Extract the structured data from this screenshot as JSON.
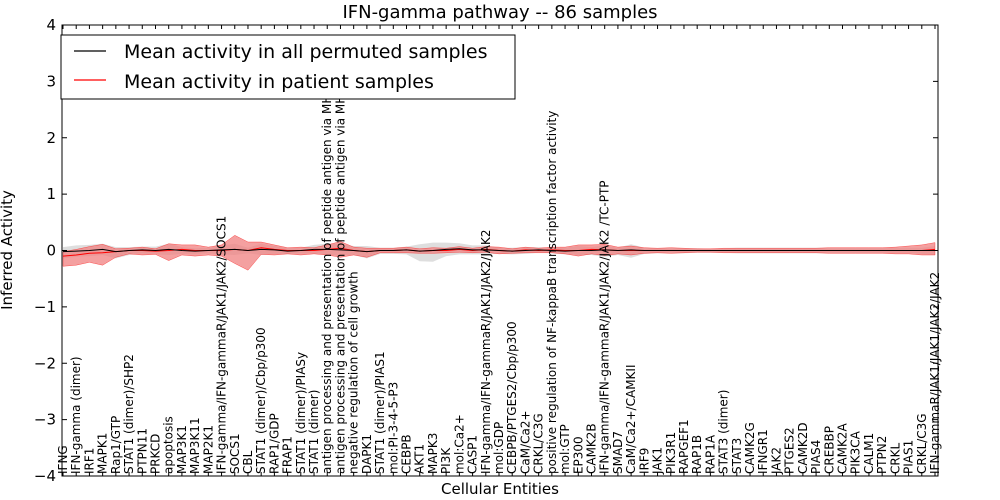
{
  "chart_data": {
    "type": "line",
    "title": "IFN-gamma pathway -- 86 samples",
    "xlabel": "Cellular Entities",
    "ylabel": "Inferred Activity",
    "ylim": [
      -4,
      4
    ],
    "yticks": [
      4,
      3,
      2,
      1,
      0,
      -1,
      -2,
      -3,
      -4
    ],
    "ytick_labels": [
      "4",
      "3",
      "2",
      "1",
      "0",
      "−1",
      "−2",
      "−3",
      "−4"
    ],
    "legend_position": "top-left",
    "colors": {
      "permuted": "#000000",
      "patient": "#ff0000",
      "patient_band": "#f08080",
      "permuted_band": "#c8c8c8"
    },
    "categories": [
      "IFNG",
      "IFN-gamma (dimer)",
      "IRF1",
      "MAPK1",
      "Rap1/GTP",
      "STAT1 (dimer)/SHP2",
      "PTPN11",
      "PRKCD",
      "apoptosis",
      "MAP3K1",
      "MAP3K11",
      "MAP2K1",
      "IFN-gamma/IFN-gammaR/JAK1/JAK2/SOCS1",
      "SOCS1",
      "CBL",
      "STAT1 (dimer)/Cbp/p300",
      "RAP1/GDP",
      "FRAP1",
      "STAT1 (dimer)/PIASy",
      "STAT1 (dimer)",
      "antigen processing and presentation of peptide antigen via MHC class I",
      "antigen processing and presentation of peptide antigen via MHC class II",
      "negative regulation of cell growth",
      "DAPK1",
      "STAT1 (dimer)/PIAS1",
      "mol:PI-3-4-5-P3",
      "CEBPB",
      "AKT1",
      "MAPK3",
      "PI3K",
      "mol:Ca2+",
      "CASP1",
      "IFN-gamma/IFN-gammaR/JAK1/JAK2/JAK2",
      "mol:GDP",
      "CEBPB/PTGES2/Cbp/p300",
      "CaM/Ca2+",
      "CRKL/C3G",
      "positive regulation of NF-kappaB transcription factor activity",
      "mol:GTP",
      "EP300",
      "CAMK2B",
      "IFN-gamma/IFN-gammaR/JAK1/JAK2/JAK2 /TC-PTP",
      "SMAD7",
      "CaM/Ca2+/CAMKII",
      "IRF9",
      "JAK1",
      "PIK3R1",
      "RAPGEF1",
      "RAP1B",
      "RAP1A",
      "STAT3 (dimer)",
      "STAT3",
      "CAMK2G",
      "IFNGR1",
      "JAK2",
      "PTGES2",
      "CAMK2D",
      "PIAS4",
      "CREBBP",
      "CAMK2A",
      "PIK3CA",
      "CALM1",
      "PTPN2",
      "CRKL",
      "PIAS1",
      "CRKL/C3G",
      "IFN-gammaR/JAK1/JAK1/JAK2/JAK2"
    ],
    "series": [
      {
        "name": "Mean activity in all permuted samples",
        "values": [
          -0.02,
          -0.01,
          0.0,
          0.02,
          -0.02,
          0.0,
          0.01,
          0.0,
          0.02,
          0.0,
          -0.01,
          0.0,
          0.01,
          0.02,
          0.0,
          0.02,
          0.01,
          -0.01,
          0.0,
          0.02,
          0.02,
          0.01,
          0.0,
          -0.02,
          0.0,
          0.0,
          0.01,
          -0.01,
          0.0,
          0.02,
          0.03,
          0.01,
          0.01,
          0.0,
          -0.01,
          0.0,
          0.01,
          0.0,
          -0.01,
          0.0,
          0.0,
          0.01,
          0.0,
          0.01,
          0.0,
          0.0,
          0.0,
          0.0,
          0.0,
          0.0,
          0.0,
          0.0,
          0.0,
          0.0,
          0.0,
          0.0,
          0.0,
          0.0,
          0.0,
          0.0,
          0.0,
          0.0,
          0.0,
          0.0,
          0.0,
          0.0,
          0.0
        ],
        "band_upper": [
          0.08,
          0.1,
          0.1,
          0.1,
          0.08,
          0.06,
          0.06,
          0.07,
          0.1,
          0.06,
          0.05,
          0.05,
          0.08,
          0.1,
          0.05,
          0.1,
          0.07,
          0.06,
          0.05,
          0.08,
          0.1,
          0.1,
          0.08,
          0.1,
          0.05,
          0.05,
          0.06,
          0.12,
          0.14,
          0.12,
          0.1,
          0.08,
          0.08,
          0.05,
          0.06,
          0.06,
          0.05,
          0.05,
          0.06,
          0.08,
          0.06,
          0.08,
          0.05,
          0.1,
          0.05,
          0.04,
          0.05,
          0.04,
          0.04,
          0.03,
          0.04,
          0.05,
          0.05,
          0.05,
          0.05,
          0.05,
          0.05,
          0.05,
          0.05,
          0.05,
          0.05,
          0.05,
          0.05,
          0.05,
          0.05,
          0.05,
          0.08
        ],
        "band_lower": [
          -0.12,
          -0.1,
          -0.1,
          -0.1,
          -0.12,
          -0.08,
          -0.06,
          -0.07,
          -0.1,
          -0.06,
          -0.05,
          -0.05,
          -0.08,
          -0.1,
          -0.05,
          -0.1,
          -0.07,
          -0.06,
          -0.05,
          -0.08,
          -0.1,
          -0.1,
          -0.08,
          -0.12,
          -0.06,
          -0.06,
          -0.08,
          -0.18,
          -0.2,
          -0.12,
          -0.1,
          -0.08,
          -0.08,
          -0.06,
          -0.06,
          -0.06,
          -0.05,
          -0.05,
          -0.06,
          -0.08,
          -0.08,
          -0.12,
          -0.08,
          -0.14,
          -0.06,
          -0.05,
          -0.05,
          -0.05,
          -0.04,
          -0.04,
          -0.04,
          -0.05,
          -0.05,
          -0.05,
          -0.05,
          -0.05,
          -0.05,
          -0.05,
          -0.05,
          -0.05,
          -0.05,
          -0.05,
          -0.05,
          -0.05,
          -0.05,
          -0.06,
          -0.08
        ]
      },
      {
        "name": "Mean activity in patient samples",
        "values": [
          -0.1,
          -0.08,
          -0.05,
          -0.04,
          -0.02,
          0.0,
          0.0,
          -0.01,
          0.0,
          0.02,
          0.0,
          0.0,
          0.0,
          0.02,
          0.0,
          0.05,
          0.02,
          0.0,
          0.0,
          0.0,
          0.02,
          0.04,
          0.0,
          -0.02,
          0.0,
          0.0,
          0.01,
          -0.01,
          0.0,
          0.0,
          0.02,
          0.0,
          0.02,
          0.0,
          -0.01,
          0.01,
          0.0,
          0.01,
          0.0,
          0.0,
          0.02,
          0.01,
          0.0,
          0.0,
          0.0,
          0.0,
          0.0,
          0.0,
          0.0,
          0.0,
          0.0,
          0.0,
          0.0,
          0.0,
          0.0,
          0.0,
          0.0,
          0.0,
          0.0,
          0.0,
          0.0,
          0.0,
          0.0,
          0.0,
          0.0,
          0.0,
          0.02
        ],
        "band_upper": [
          0.08,
          0.1,
          0.12,
          0.15,
          0.05,
          0.04,
          0.06,
          0.04,
          0.12,
          0.08,
          0.1,
          0.06,
          0.1,
          0.25,
          0.15,
          0.1,
          0.08,
          0.05,
          0.06,
          0.05,
          0.08,
          0.12,
          0.06,
          0.06,
          0.04,
          0.04,
          0.05,
          0.04,
          0.05,
          0.04,
          0.05,
          0.04,
          0.05,
          0.06,
          0.04,
          0.05,
          0.04,
          0.05,
          0.06,
          0.1,
          0.08,
          0.1,
          0.06,
          0.08,
          0.05,
          0.04,
          0.05,
          0.04,
          0.03,
          0.03,
          0.04,
          0.04,
          0.04,
          0.04,
          0.04,
          0.04,
          0.04,
          0.04,
          0.05,
          0.05,
          0.05,
          0.05,
          0.05,
          0.06,
          0.08,
          0.1,
          0.12
        ],
        "band_lower": [
          -0.18,
          -0.18,
          -0.16,
          -0.22,
          -0.1,
          -0.06,
          -0.08,
          -0.06,
          -0.18,
          -0.1,
          -0.1,
          -0.08,
          -0.1,
          -0.25,
          -0.35,
          -0.12,
          -0.1,
          -0.06,
          -0.08,
          -0.06,
          -0.1,
          -0.16,
          -0.08,
          -0.1,
          -0.04,
          -0.04,
          -0.05,
          -0.04,
          -0.05,
          -0.04,
          -0.05,
          -0.04,
          -0.05,
          -0.06,
          -0.04,
          -0.05,
          -0.04,
          -0.05,
          -0.06,
          -0.1,
          -0.08,
          -0.1,
          -0.06,
          -0.08,
          -0.05,
          -0.04,
          -0.05,
          -0.04,
          -0.03,
          -0.03,
          -0.04,
          -0.04,
          -0.04,
          -0.04,
          -0.04,
          -0.04,
          -0.04,
          -0.04,
          -0.05,
          -0.05,
          -0.05,
          -0.05,
          -0.05,
          -0.06,
          -0.06,
          -0.08,
          -0.1
        ]
      }
    ]
  }
}
